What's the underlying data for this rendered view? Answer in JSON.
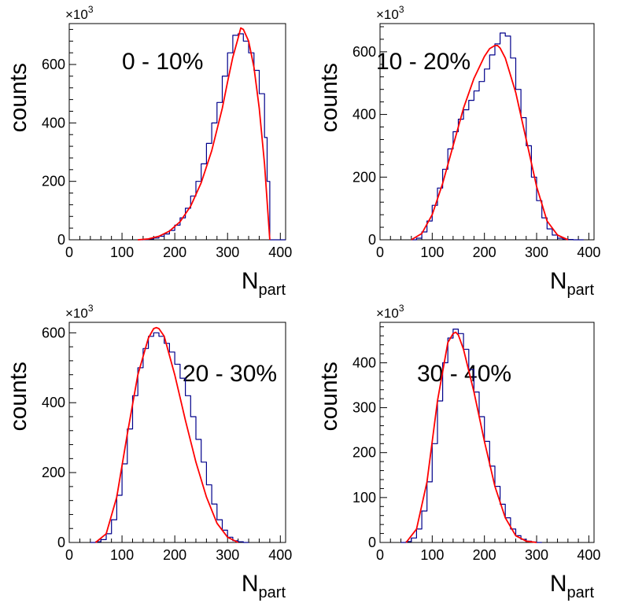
{
  "figure": {
    "shared_xlabel": "N",
    "shared_xlabel_sub": "part",
    "shared_ylabel": "counts",
    "y_multiplier_base": "×10",
    "y_multiplier_exp": "3",
    "hist_color": "#00008B",
    "fit_color": "#FF0000"
  },
  "chart_data": [
    {
      "type": "line",
      "panel": "top-left",
      "title": "0 - 10%",
      "xlabel": "N_part",
      "ylabel": "counts",
      "y_unit_multiplier": "x10^3",
      "xlim": [
        0,
        410
      ],
      "ylim": [
        0,
        740
      ],
      "xticks": [
        0,
        100,
        200,
        300,
        400
      ],
      "yticks": [
        0,
        200,
        400,
        600
      ],
      "series": [
        {
          "name": "histogram",
          "style": "step",
          "x": [
            130,
            140,
            150,
            160,
            170,
            180,
            190,
            200,
            210,
            220,
            230,
            240,
            250,
            260,
            270,
            280,
            290,
            300,
            310,
            320,
            330,
            340,
            350,
            360,
            370,
            375,
            380,
            385,
            390,
            400
          ],
          "values": [
            0,
            1,
            3,
            6,
            12,
            20,
            32,
            50,
            75,
            108,
            150,
            200,
            260,
            330,
            400,
            470,
            560,
            640,
            700,
            705,
            680,
            640,
            580,
            500,
            350,
            200,
            0,
            0,
            0,
            0
          ]
        },
        {
          "name": "fit",
          "style": "line",
          "x": [
            130,
            150,
            170,
            190,
            210,
            230,
            250,
            270,
            290,
            300,
            310,
            320,
            325,
            330,
            340,
            350,
            360,
            370,
            380
          ],
          "values": [
            0,
            3,
            12,
            30,
            62,
            115,
            195,
            305,
            450,
            540,
            625,
            690,
            725,
            720,
            680,
            590,
            450,
            260,
            0
          ]
        }
      ]
    },
    {
      "type": "line",
      "panel": "top-right",
      "title": "10 - 20%",
      "xlabel": "N_part",
      "ylabel": "counts",
      "y_unit_multiplier": "x10^3",
      "xlim": [
        0,
        410
      ],
      "ylim": [
        0,
        690
      ],
      "xticks": [
        0,
        100,
        200,
        300,
        400
      ],
      "yticks": [
        0,
        200,
        400,
        600
      ],
      "series": [
        {
          "name": "histogram",
          "style": "step",
          "x": [
            60,
            70,
            80,
            90,
            100,
            110,
            120,
            130,
            140,
            150,
            160,
            170,
            180,
            190,
            200,
            210,
            220,
            230,
            240,
            250,
            260,
            270,
            280,
            290,
            300,
            310,
            320,
            330,
            340,
            350,
            360,
            370,
            380
          ],
          "values": [
            0,
            5,
            25,
            60,
            110,
            165,
            225,
            290,
            345,
            385,
            415,
            445,
            475,
            505,
            545,
            590,
            625,
            660,
            650,
            580,
            480,
            390,
            300,
            200,
            125,
            70,
            35,
            15,
            5,
            2,
            1,
            0,
            0
          ]
        },
        {
          "name": "fit",
          "style": "line",
          "x": [
            60,
            80,
            100,
            120,
            140,
            160,
            180,
            200,
            210,
            220,
            225,
            230,
            240,
            260,
            280,
            300,
            320,
            340,
            360
          ],
          "values": [
            0,
            20,
            80,
            180,
            300,
            420,
            515,
            585,
            610,
            620,
            620,
            612,
            580,
            470,
            320,
            170,
            60,
            15,
            0
          ]
        }
      ]
    },
    {
      "type": "line",
      "panel": "bottom-left",
      "title": "20 - 30%",
      "xlabel": "N_part",
      "ylabel": "counts",
      "y_unit_multiplier": "x10^3",
      "xlim": [
        0,
        410
      ],
      "ylim": [
        0,
        630
      ],
      "xticks": [
        0,
        100,
        200,
        300,
        400
      ],
      "yticks": [
        0,
        200,
        400,
        600
      ],
      "series": [
        {
          "name": "histogram",
          "style": "step",
          "x": [
            40,
            50,
            60,
            70,
            80,
            90,
            100,
            110,
            120,
            130,
            140,
            150,
            160,
            170,
            180,
            190,
            200,
            210,
            220,
            230,
            240,
            250,
            260,
            270,
            280,
            290,
            300,
            310,
            320,
            330
          ],
          "values": [
            0,
            2,
            8,
            25,
            65,
            135,
            225,
            325,
            420,
            500,
            555,
            590,
            600,
            590,
            570,
            545,
            510,
            470,
            420,
            360,
            295,
            230,
            165,
            110,
            65,
            35,
            15,
            5,
            2,
            0
          ]
        },
        {
          "name": "fit",
          "style": "line",
          "x": [
            50,
            70,
            90,
            110,
            130,
            150,
            160,
            165,
            170,
            180,
            200,
            220,
            240,
            260,
            280,
            300,
            320
          ],
          "values": [
            0,
            25,
            130,
            310,
            480,
            585,
            612,
            615,
            612,
            590,
            480,
            350,
            230,
            130,
            55,
            15,
            0
          ]
        }
      ]
    },
    {
      "type": "line",
      "panel": "bottom-right",
      "title": "30 - 40%",
      "xlabel": "N_part",
      "ylabel": "counts",
      "y_unit_multiplier": "x10^3",
      "xlim": [
        0,
        410
      ],
      "ylim": [
        0,
        490
      ],
      "xticks": [
        0,
        100,
        200,
        300,
        400
      ],
      "yticks": [
        0,
        100,
        200,
        300,
        400
      ],
      "series": [
        {
          "name": "histogram",
          "style": "step",
          "x": [
            40,
            50,
            60,
            70,
            80,
            90,
            100,
            110,
            120,
            130,
            140,
            150,
            160,
            170,
            180,
            190,
            200,
            210,
            220,
            230,
            240,
            250,
            260,
            270,
            280,
            290,
            300
          ],
          "values": [
            0,
            2,
            10,
            30,
            70,
            135,
            220,
            315,
            400,
            455,
            475,
            465,
            430,
            385,
            335,
            280,
            225,
            170,
            125,
            85,
            55,
            30,
            15,
            7,
            3,
            1,
            0
          ]
        },
        {
          "name": "fit",
          "style": "line",
          "x": [
            50,
            70,
            90,
            110,
            130,
            140,
            145,
            150,
            160,
            180,
            200,
            220,
            240,
            260,
            280,
            300
          ],
          "values": [
            0,
            30,
            135,
            315,
            445,
            465,
            468,
            462,
            430,
            335,
            225,
            125,
            55,
            15,
            3,
            0
          ]
        }
      ]
    }
  ]
}
